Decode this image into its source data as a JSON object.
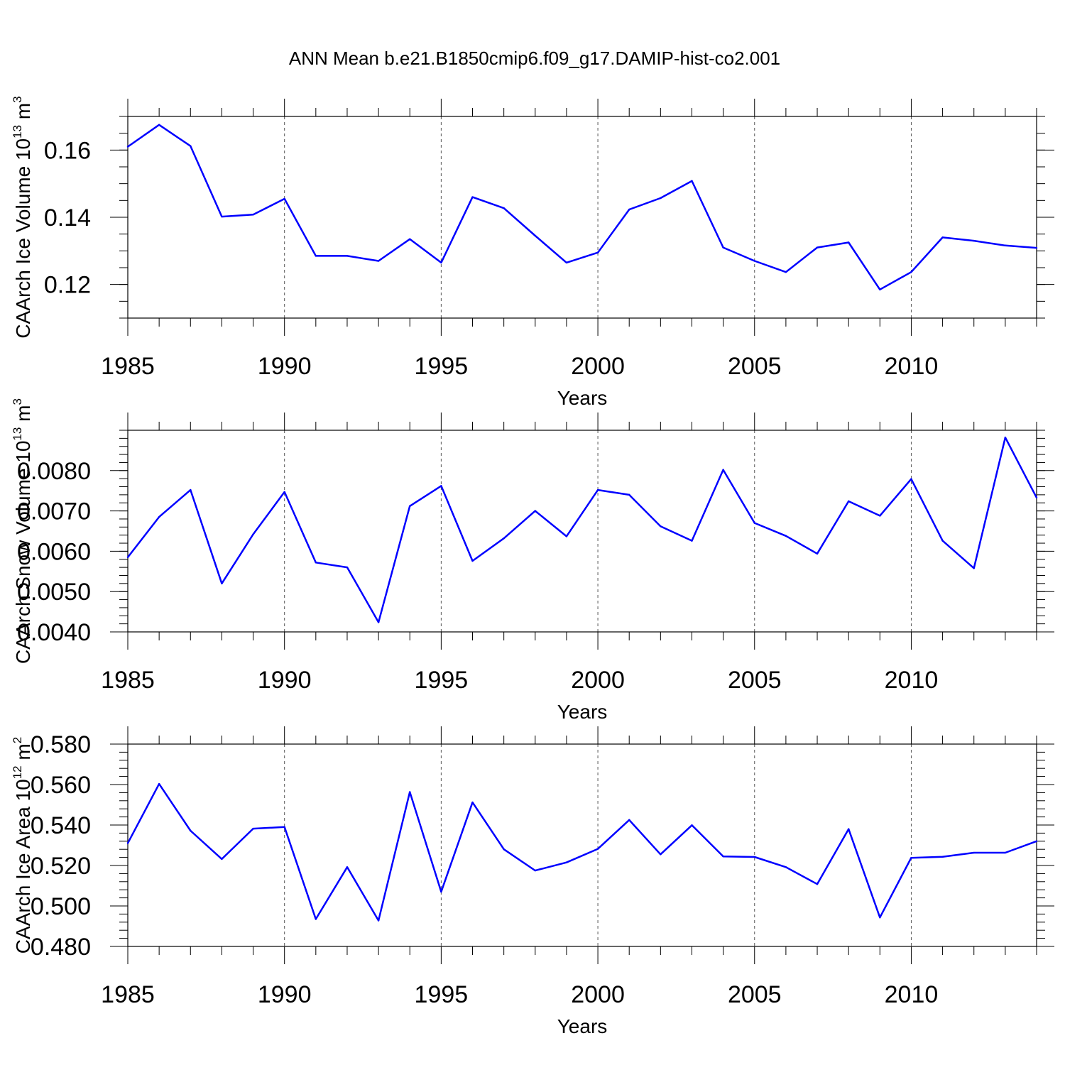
{
  "page": {
    "title": "ANN Mean b.e21.B1850cmip6.f09_g17.DAMIP-hist-co2.001"
  },
  "colors": {
    "series": "#0000ff",
    "axis": "#000000",
    "grid": "#555555"
  },
  "chart_data": [
    {
      "type": "line",
      "title": "ANN Mean b.e21.B1850cmip6.f09_g17.DAMIP-hist-co2.001",
      "xlabel": "Years",
      "ylabel_parts": {
        "main": "CAArch Ice Volume 10",
        "exp": "13",
        "unit": " m",
        "unit_exp": "3"
      },
      "xlim": [
        1985,
        2014
      ],
      "ylim": [
        0.11,
        0.17
      ],
      "xticks": [
        1985,
        1990,
        1995,
        2000,
        2005,
        2010
      ],
      "xtick_labels": [
        "1985",
        "1990",
        "1995",
        "2000",
        "2005",
        "2010"
      ],
      "yticks": [
        0.12,
        0.14,
        0.16
      ],
      "ytick_labels": [
        "0.12",
        "0.14",
        "0.16"
      ],
      "yminor_step": 0.005,
      "grid": "vertical dashed at major x ticks",
      "x": [
        1985,
        1986,
        1987,
        1988,
        1989,
        1990,
        1991,
        1992,
        1993,
        1994,
        1995,
        1996,
        1997,
        1998,
        1999,
        2000,
        2001,
        2002,
        2003,
        2004,
        2005,
        2006,
        2007,
        2008,
        2009,
        2010,
        2011,
        2012,
        2013,
        2014
      ],
      "values": [
        0.161,
        0.1675,
        0.1612,
        0.1402,
        0.1408,
        0.1455,
        0.1285,
        0.1285,
        0.127,
        0.1335,
        0.1265,
        0.146,
        0.1427,
        0.1345,
        0.1265,
        0.1295,
        0.1423,
        0.1457,
        0.1508,
        0.131,
        0.127,
        0.1237,
        0.131,
        0.1325,
        0.1185,
        0.1237,
        0.134,
        0.133,
        0.1316,
        0.1309
      ]
    },
    {
      "type": "line",
      "xlabel": "Years",
      "ylabel_parts": {
        "main": "CAArch Snow Volume 10",
        "exp": "13",
        "unit": " m",
        "unit_exp": "3"
      },
      "xlim": [
        1985,
        2014
      ],
      "ylim": [
        0.004,
        0.009
      ],
      "xticks": [
        1985,
        1990,
        1995,
        2000,
        2005,
        2010
      ],
      "xtick_labels": [
        "1985",
        "1990",
        "1995",
        "2000",
        "2005",
        "2010"
      ],
      "yticks": [
        0.004,
        0.005,
        0.006,
        0.007,
        0.008
      ],
      "ytick_labels": [
        "0.0040",
        "0.0050",
        "0.0060",
        "0.0070",
        "0.0080"
      ],
      "yminor_step": 0.0002,
      "grid": "vertical dashed at major x ticks",
      "x": [
        1985,
        1986,
        1987,
        1988,
        1989,
        1990,
        1991,
        1992,
        1993,
        1994,
        1995,
        1996,
        1997,
        1998,
        1999,
        2000,
        2001,
        2002,
        2003,
        2004,
        2005,
        2006,
        2007,
        2008,
        2009,
        2010,
        2011,
        2012,
        2013,
        2014
      ],
      "values": [
        0.00585,
        0.00685,
        0.00752,
        0.0052,
        0.00642,
        0.00747,
        0.00572,
        0.0056,
        0.00424,
        0.00712,
        0.00762,
        0.00576,
        0.00632,
        0.007,
        0.00637,
        0.00752,
        0.0074,
        0.00662,
        0.00626,
        0.00802,
        0.0067,
        0.00638,
        0.00594,
        0.00724,
        0.00688,
        0.00779,
        0.00626,
        0.00558,
        0.00882,
        0.00733
      ]
    },
    {
      "type": "line",
      "xlabel": "Years",
      "ylabel_parts": {
        "main": "CAArch Ice Area 10",
        "exp": "12",
        "unit": " m",
        "unit_exp": "2"
      },
      "xlim": [
        1985,
        2014
      ],
      "ylim": [
        0.48,
        0.58
      ],
      "xticks": [
        1985,
        1990,
        1995,
        2000,
        2005,
        2010
      ],
      "xtick_labels": [
        "1985",
        "1990",
        "1995",
        "2000",
        "2005",
        "2010"
      ],
      "yticks": [
        0.48,
        0.5,
        0.52,
        0.54,
        0.56,
        0.58
      ],
      "ytick_labels": [
        "0.480",
        "0.500",
        "0.520",
        "0.540",
        "0.560",
        "0.580"
      ],
      "yminor_step": 0.004,
      "grid": "vertical dashed at major x ticks",
      "x": [
        1985,
        1986,
        1987,
        1988,
        1989,
        1990,
        1991,
        1992,
        1993,
        1994,
        1995,
        1996,
        1997,
        1998,
        1999,
        2000,
        2001,
        2002,
        2003,
        2004,
        2005,
        2006,
        2007,
        2008,
        2009,
        2010,
        2011,
        2012,
        2013,
        2014
      ],
      "values": [
        0.531,
        0.5603,
        0.5372,
        0.5232,
        0.5382,
        0.539,
        0.4935,
        0.5192,
        0.4928,
        0.5563,
        0.507,
        0.5512,
        0.528,
        0.5175,
        0.5215,
        0.5282,
        0.5425,
        0.5255,
        0.5399,
        0.5245,
        0.5242,
        0.5192,
        0.5108,
        0.538,
        0.4943,
        0.5238,
        0.5243,
        0.5263,
        0.5263,
        0.532
      ]
    }
  ]
}
